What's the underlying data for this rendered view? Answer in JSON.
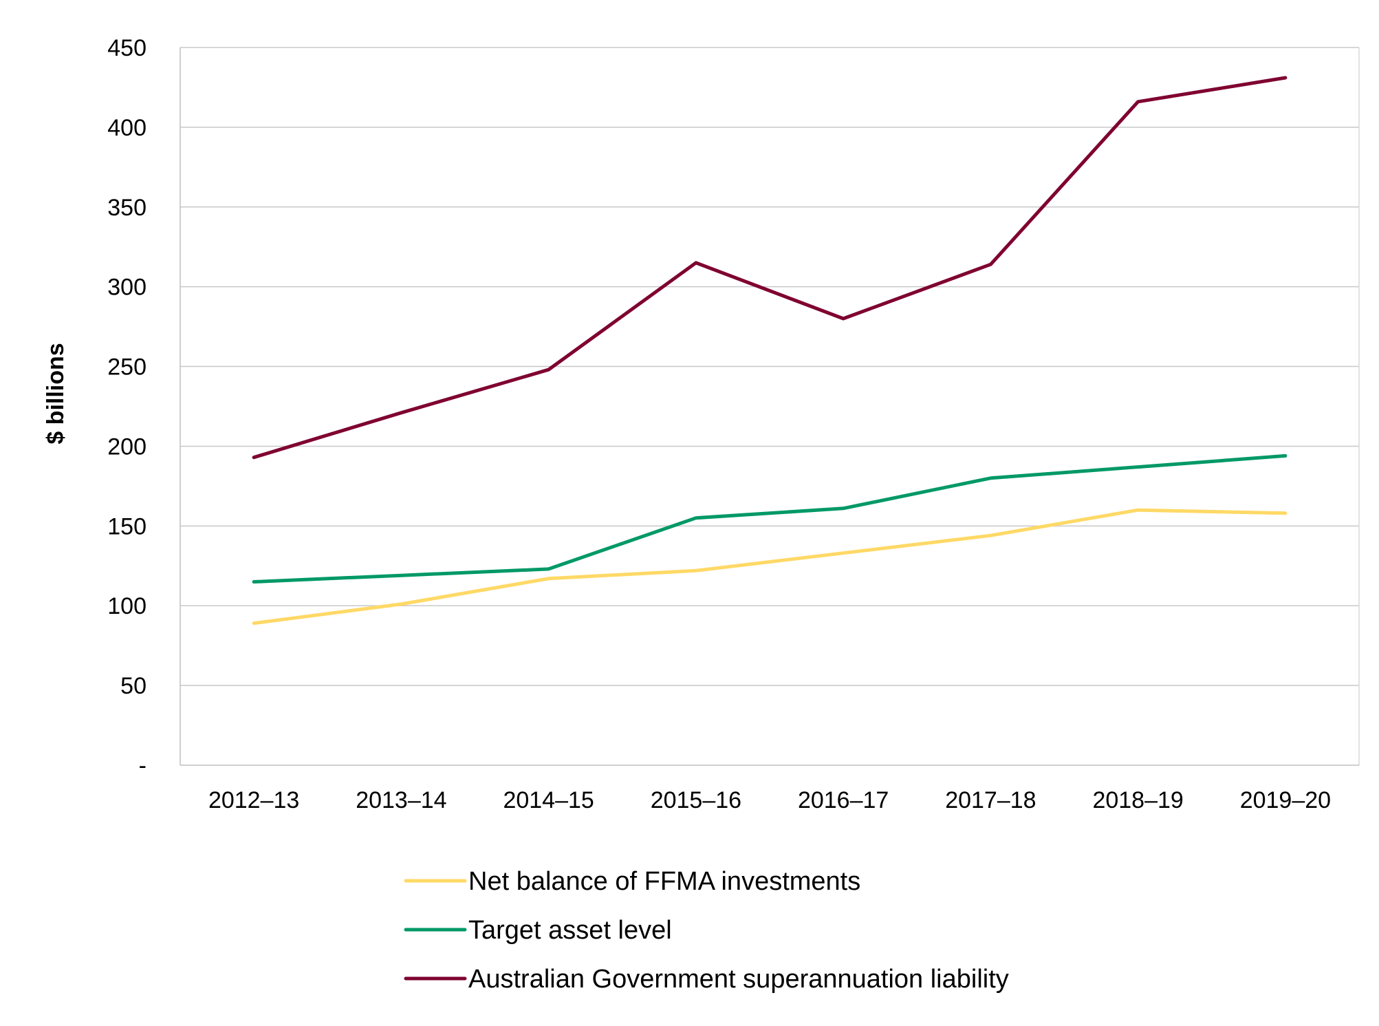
{
  "chart_data": {
    "type": "line",
    "title": "",
    "xlabel": "",
    "ylabel": "$ billions",
    "ylim": [
      0,
      450
    ],
    "ytick_step": 50,
    "ytick_labels": [
      "-",
      "50",
      "100",
      "150",
      "200",
      "250",
      "300",
      "350",
      "400",
      "450"
    ],
    "grid": true,
    "legend_position": "bottom",
    "categories": [
      "2012–13",
      "2013–14",
      "2014–15",
      "2015–16",
      "2016–17",
      "2017–18",
      "2018–19",
      "2019–20"
    ],
    "series": [
      {
        "name": "Net balance of FFMA investments",
        "color": "#FFD966",
        "values": [
          89,
          101,
          117,
          122,
          133,
          144,
          160,
          158
        ]
      },
      {
        "name": "Target asset level",
        "color": "#009966",
        "values": [
          115,
          119,
          123,
          155,
          161,
          180,
          187,
          194
        ]
      },
      {
        "name": "Australian Government superannuation liability",
        "color": "#7F0030",
        "values": [
          193,
          221,
          248,
          315,
          280,
          314,
          416,
          431
        ]
      }
    ]
  }
}
